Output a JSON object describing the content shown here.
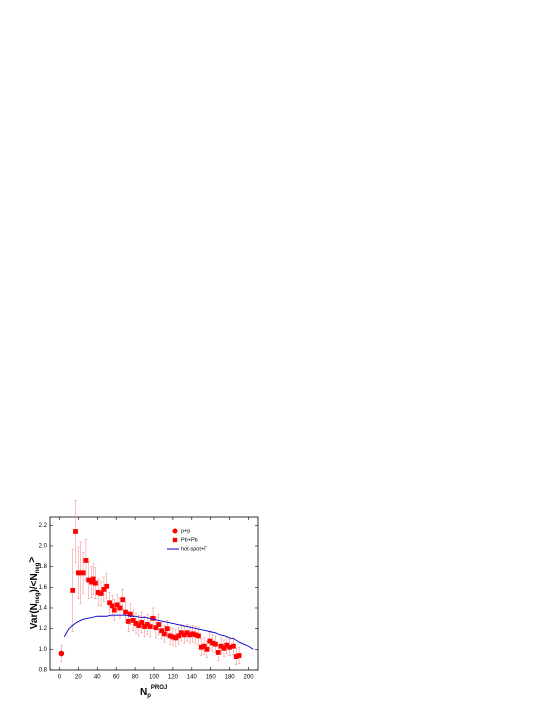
{
  "chart_data": {
    "type": "scatter",
    "xlabel_parts": [
      "N",
      "p",
      "PROJ"
    ],
    "ylabel_parts": [
      "Var(N",
      "neg",
      ")/<N",
      "neg",
      ">"
    ],
    "xlim": [
      -10,
      210
    ],
    "ylim": [
      0.8,
      2.28
    ],
    "xticks": [
      0,
      20,
      40,
      60,
      80,
      100,
      120,
      140,
      160,
      180,
      200
    ],
    "yticks": [
      0.8,
      {
        "value": 1,
        "label": "1.0"
      },
      1.2,
      1.4,
      1.6,
      1.8,
      {
        "value": 2,
        "label": "2.0"
      },
      2.2
    ],
    "series": [
      {
        "name": "p+p",
        "marker": "circle",
        "color": "#ff0000",
        "x": [
          2
        ],
        "values": [
          0.96
        ],
        "errors": [
          0.08
        ]
      },
      {
        "name": "Pb+Pb",
        "marker": "square",
        "color": "#ff0000",
        "x": [
          14,
          17,
          20,
          22,
          25,
          28,
          31,
          34,
          36,
          38,
          41,
          44,
          47,
          50,
          53,
          56,
          58,
          61,
          64,
          67,
          70,
          73,
          75,
          78,
          81,
          84,
          87,
          90,
          93,
          96,
          99,
          102,
          105,
          108,
          111,
          114,
          117,
          120,
          123,
          126,
          129,
          132,
          135,
          138,
          141,
          144,
          147,
          150,
          153,
          156,
          159,
          162,
          165,
          168,
          171,
          174,
          177,
          180,
          184,
          187,
          190
        ],
        "values": [
          1.57,
          2.14,
          1.74,
          1.74,
          1.74,
          1.86,
          1.67,
          1.65,
          1.68,
          1.64,
          1.55,
          1.54,
          1.58,
          1.61,
          1.45,
          1.42,
          1.38,
          1.43,
          1.4,
          1.48,
          1.36,
          1.27,
          1.34,
          1.28,
          1.25,
          1.23,
          1.26,
          1.22,
          1.24,
          1.22,
          1.3,
          1.21,
          1.24,
          1.18,
          1.15,
          1.2,
          1.13,
          1.12,
          1.11,
          1.13,
          1.16,
          1.14,
          1.16,
          1.14,
          1.15,
          1.14,
          1.13,
          1.02,
          1.03,
          1.0,
          1.08,
          1.06,
          1.05,
          0.97,
          1.03,
          1.01,
          1.04,
          1.02,
          1.03,
          0.93,
          0.94
        ],
        "errors": [
          0.4,
          0.3,
          0.25,
          0.3,
          0.2,
          0.2,
          0.18,
          0.15,
          0.15,
          0.15,
          0.13,
          0.12,
          0.12,
          0.12,
          0.1,
          0.1,
          0.1,
          0.1,
          0.1,
          0.1,
          0.1,
          0.1,
          0.1,
          0.1,
          0.1,
          0.1,
          0.1,
          0.1,
          0.1,
          0.1,
          0.1,
          0.1,
          0.1,
          0.08,
          0.08,
          0.08,
          0.08,
          0.08,
          0.08,
          0.08,
          0.08,
          0.08,
          0.08,
          0.08,
          0.08,
          0.08,
          0.08,
          0.08,
          0.08,
          0.08,
          0.08,
          0.08,
          0.08,
          0.08,
          0.08,
          0.08,
          0.08,
          0.08,
          0.08,
          0.08,
          0.08
        ]
      },
      {
        "name": "hot-spot+Γ",
        "marker": "line",
        "color": "#0000cc",
        "x": [
          5,
          10,
          15,
          20,
          25,
          30,
          35,
          40,
          45,
          50,
          55,
          60,
          65,
          70,
          75,
          80,
          85,
          90,
          95,
          100,
          105,
          110,
          115,
          120,
          125,
          130,
          135,
          140,
          145,
          150,
          155,
          160,
          165,
          170,
          175,
          180,
          185,
          190,
          195,
          200,
          205
        ],
        "values": [
          1.12,
          1.2,
          1.24,
          1.27,
          1.29,
          1.3,
          1.31,
          1.32,
          1.32,
          1.32,
          1.33,
          1.33,
          1.33,
          1.33,
          1.32,
          1.32,
          1.31,
          1.31,
          1.3,
          1.29,
          1.28,
          1.27,
          1.26,
          1.25,
          1.24,
          1.23,
          1.22,
          1.21,
          1.2,
          1.19,
          1.18,
          1.17,
          1.16,
          1.14,
          1.13,
          1.11,
          1.1,
          1.07,
          1.05,
          1.03,
          1.0
        ]
      }
    ]
  }
}
